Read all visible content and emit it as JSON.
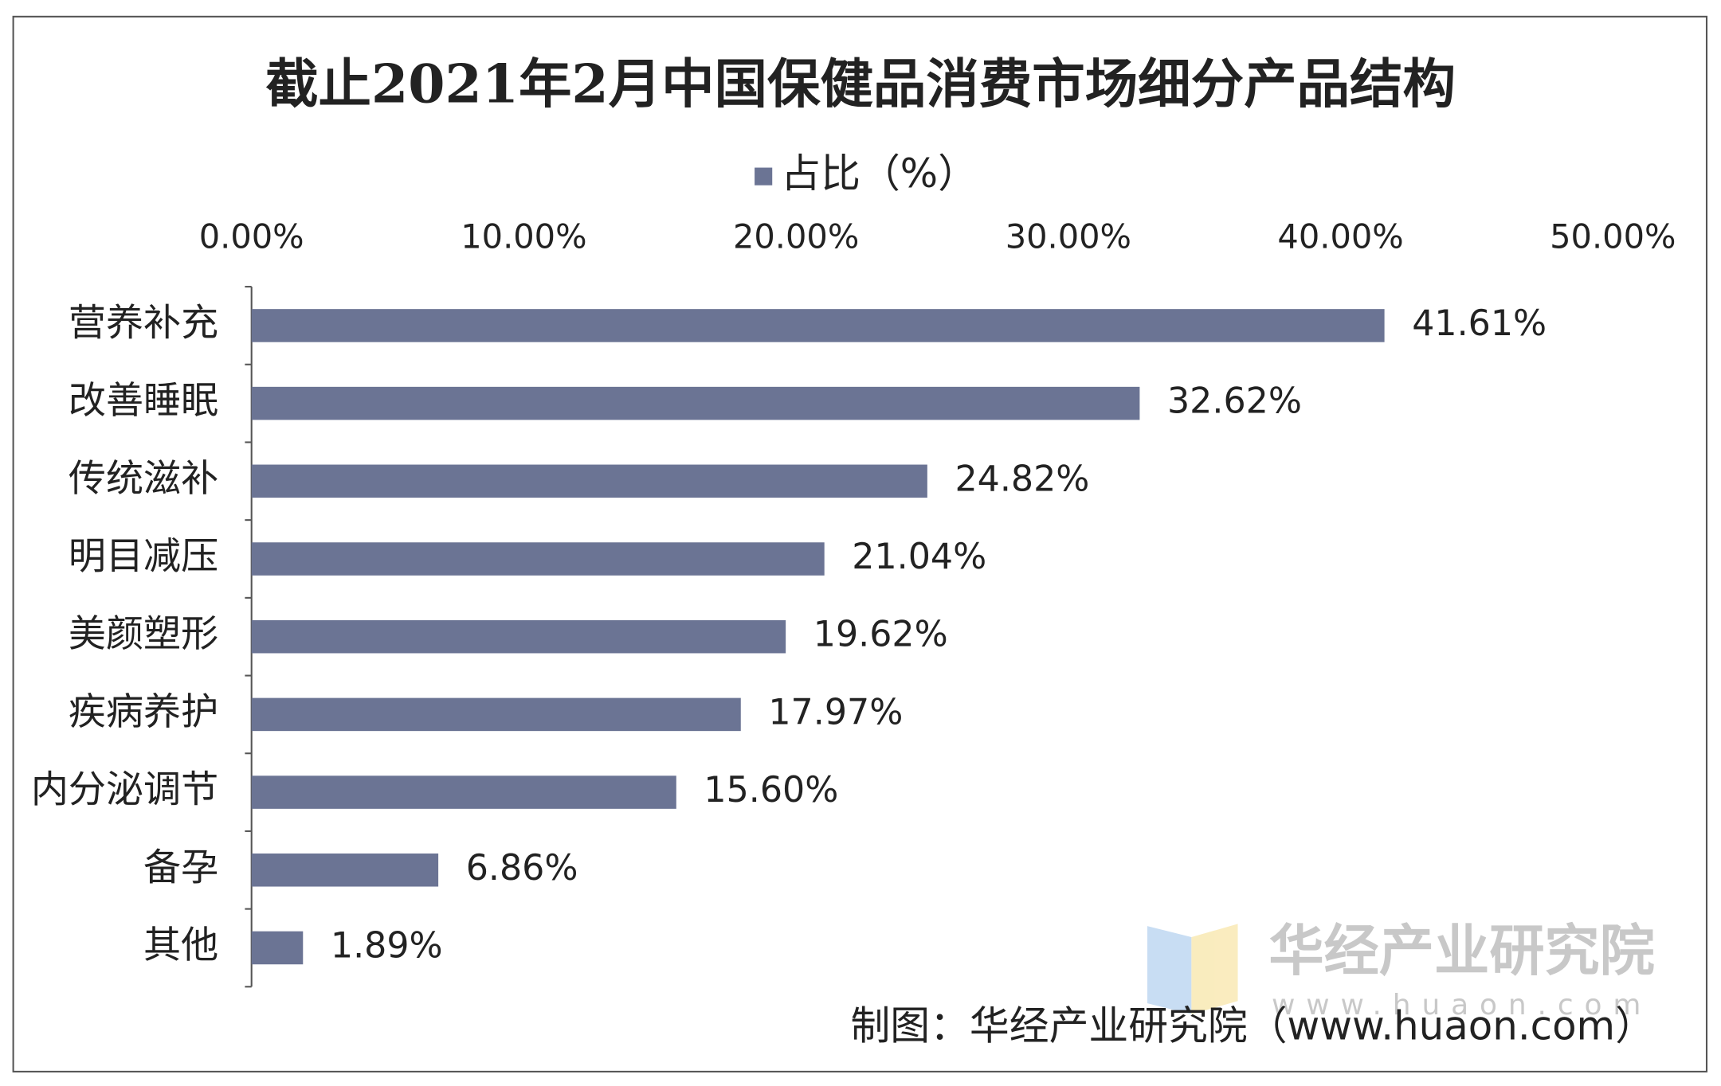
{
  "chart_data": {
    "type": "bar",
    "orientation": "horizontal",
    "title": "截止2021年2月中国保健品消费市场细分产品结构",
    "categories": [
      "营养补充",
      "改善睡眠",
      "传统滋补",
      "明目减压",
      "美颜塑形",
      "疾病养护",
      "内分泌调节",
      "备孕",
      "其他"
    ],
    "series": [
      {
        "name": "占比（%）",
        "color": "#6b7494",
        "values": [
          41.61,
          32.62,
          24.82,
          21.04,
          19.62,
          17.97,
          15.6,
          6.86,
          1.89
        ],
        "value_labels": [
          "41.61%",
          "32.62%",
          "24.82%",
          "21.04%",
          "19.62%",
          "17.97%",
          "15.60%",
          "6.86%",
          "1.89%"
        ]
      }
    ],
    "xlim": [
      0,
      50
    ],
    "xticks": [
      {
        "value": 0,
        "label": "0.00%"
      },
      {
        "value": 10,
        "label": "10.00%"
      },
      {
        "value": 20,
        "label": "20.00%"
      },
      {
        "value": 30,
        "label": "30.00%"
      },
      {
        "value": 40,
        "label": "40.00%"
      },
      {
        "value": 50,
        "label": "50.00%"
      }
    ],
    "legend": "top",
    "watermark": [
      "华经产业研究院",
      "www.huaon.com"
    ],
    "source": "制图：华经产业研究院（www.huaon.com）"
  }
}
